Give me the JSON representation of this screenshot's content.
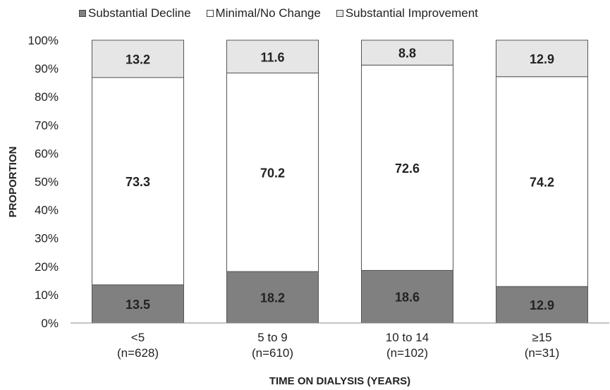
{
  "chart_data": {
    "type": "bar",
    "stacked": true,
    "percent_scale": true,
    "categories": [
      "<5",
      "5 to 9",
      "10 to 14",
      "≥15"
    ],
    "category_counts": [
      "(n=628)",
      "(n=610)",
      "(n=102)",
      "(n=31)"
    ],
    "series": [
      {
        "name": "Substantial Decline",
        "values": [
          13.5,
          18.2,
          18.6,
          12.9
        ],
        "color": "#808080"
      },
      {
        "name": "Minimal/No Change",
        "values": [
          73.3,
          70.2,
          72.6,
          74.2
        ],
        "color": "#ffffff"
      },
      {
        "name": "Substantial Improvement",
        "values": [
          13.2,
          11.6,
          8.8,
          12.9
        ],
        "color": "#e6e6e6"
      }
    ],
    "xlabel": "TIME ON DIALYSIS (YEARS)",
    "ylabel": "PROPORTION",
    "ylim": [
      0,
      100
    ],
    "yticks": [
      "0%",
      "10%",
      "20%",
      "30%",
      "40%",
      "50%",
      "60%",
      "70%",
      "80%",
      "90%",
      "100%"
    ],
    "legend_position": "top",
    "grid": false
  }
}
